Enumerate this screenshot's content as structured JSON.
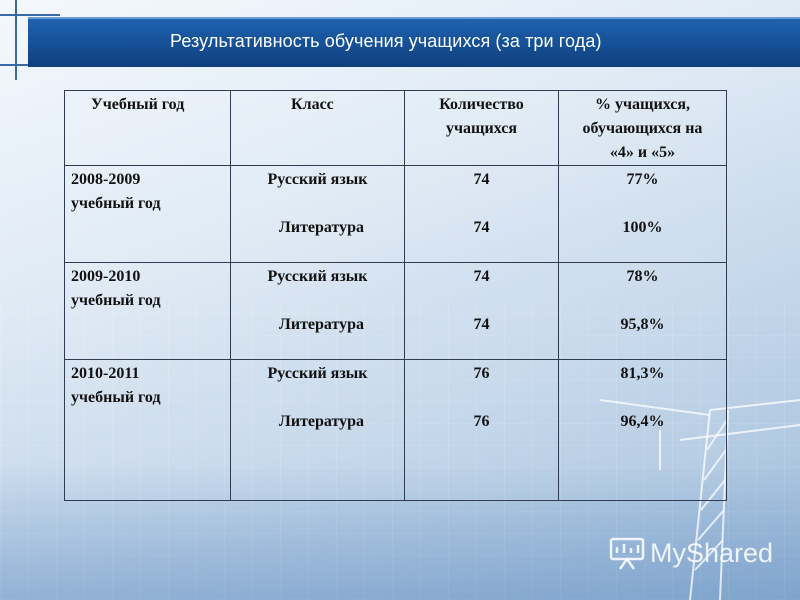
{
  "slide": {
    "title": "Результативность обучения учащихся (за три года)"
  },
  "table": {
    "headers": {
      "year": "Учебный год",
      "class": "Класс",
      "count_line1": "Количество",
      "count_line2": "учащихся",
      "pct_line1": "% учащихся,",
      "pct_line2": "обучающихся на",
      "pct_line3": "«4» и «5»"
    },
    "rows": [
      {
        "year_line1": "2008-2009",
        "year_line2": "учебный год",
        "subjects": [
          {
            "name": "Русский язык",
            "count": "74",
            "pct": "77%"
          },
          {
            "name": "Литература",
            "count": "74",
            "pct": "100%"
          }
        ]
      },
      {
        "year_line1": "2009-2010",
        "year_line2": "учебный год",
        "subjects": [
          {
            "name": "Русский язык",
            "count": "74",
            "pct": "78%"
          },
          {
            "name": "Литература",
            "count": "74",
            "pct": "95,8%"
          }
        ]
      },
      {
        "year_line1": "2010-2011",
        "year_line2": "учебный год",
        "subjects": [
          {
            "name": "Русский язык",
            "count": "76",
            "pct": "81,3%"
          },
          {
            "name": "Литература",
            "count": "76",
            "pct": "96,4%"
          }
        ]
      }
    ]
  },
  "watermark": {
    "text": "MyShared",
    "icon": "presentation-board-icon"
  },
  "colors": {
    "title_bar": "#154f95",
    "title_text": "#ffffff",
    "table_border": "#2f3c52",
    "background_light": "#f4f8fc",
    "background_dark": "#9dbbd9"
  }
}
